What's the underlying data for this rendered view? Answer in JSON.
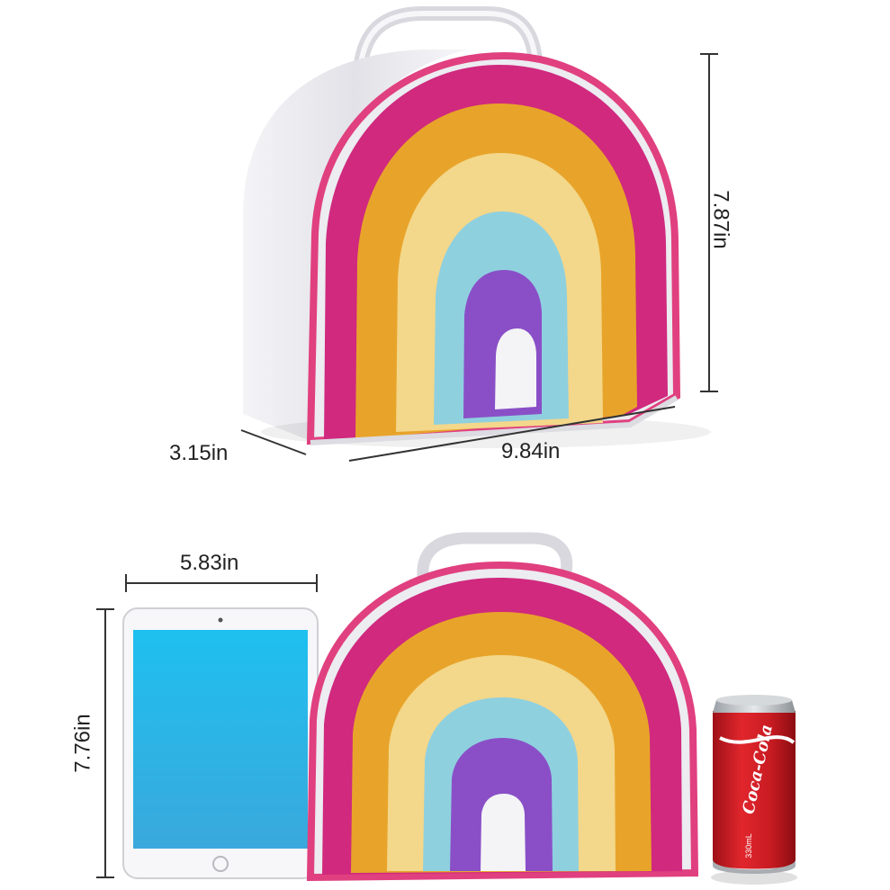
{
  "top_bag": {
    "height_label": "7.87in",
    "depth_label": "3.15in",
    "width_label": "9.84in"
  },
  "bottom_scene": {
    "tablet_width_label": "5.83in",
    "tablet_height_label": "7.76in",
    "can_brand": "Coca-Cola",
    "can_volume": "330mL"
  },
  "colors": {
    "rainbow_bands": [
      "#d0297e",
      "#e8a42a",
      "#f3d78a",
      "#8fd0df",
      "#8a4fc7"
    ],
    "bag_body": "#e9e9ee",
    "zipper_trim": "#e0407f",
    "tablet_screen": "#2fb4e4",
    "can_red": "#d41f26"
  }
}
